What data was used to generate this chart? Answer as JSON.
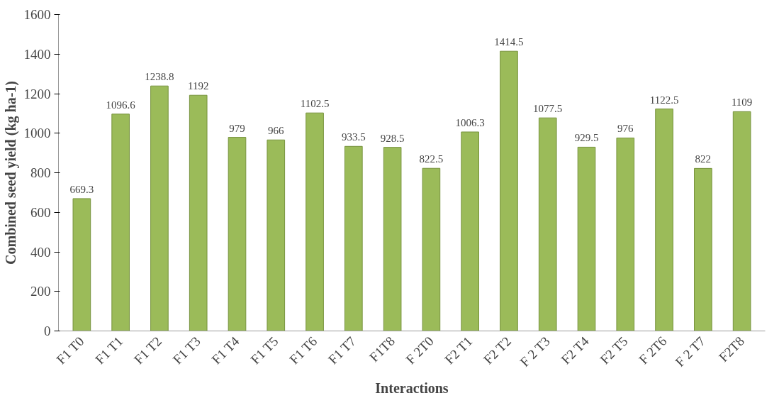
{
  "chart_data": {
    "type": "bar",
    "xlabel": "Interactions",
    "ylabel": "Combined seed yield (kg ha-1)",
    "categories": [
      "F1 T0",
      "F1 T1",
      "F1 T2",
      "F1 T3",
      "F1 T4",
      "F1 T5",
      "F1 T6",
      "F1 T7",
      "F1T8",
      "F 2T0",
      "F2 T1",
      "F2 T2",
      "F 2 T3",
      "F2 T4",
      "F2 T5",
      "F 2T6",
      "F 2 T7",
      "F2T8"
    ],
    "values": [
      669.3,
      1096.6,
      1238.8,
      1192,
      979,
      966,
      1102.5,
      933.5,
      928.5,
      822.5,
      1006.3,
      1414.5,
      1077.5,
      929.5,
      976,
      1122.5,
      822,
      1109
    ],
    "color": "#9bbb59",
    "ylim": [
      0,
      1600
    ],
    "yticks": [
      0,
      200,
      400,
      600,
      800,
      1000,
      1200,
      1400,
      1600
    ],
    "data_labels": true,
    "grid": false
  }
}
